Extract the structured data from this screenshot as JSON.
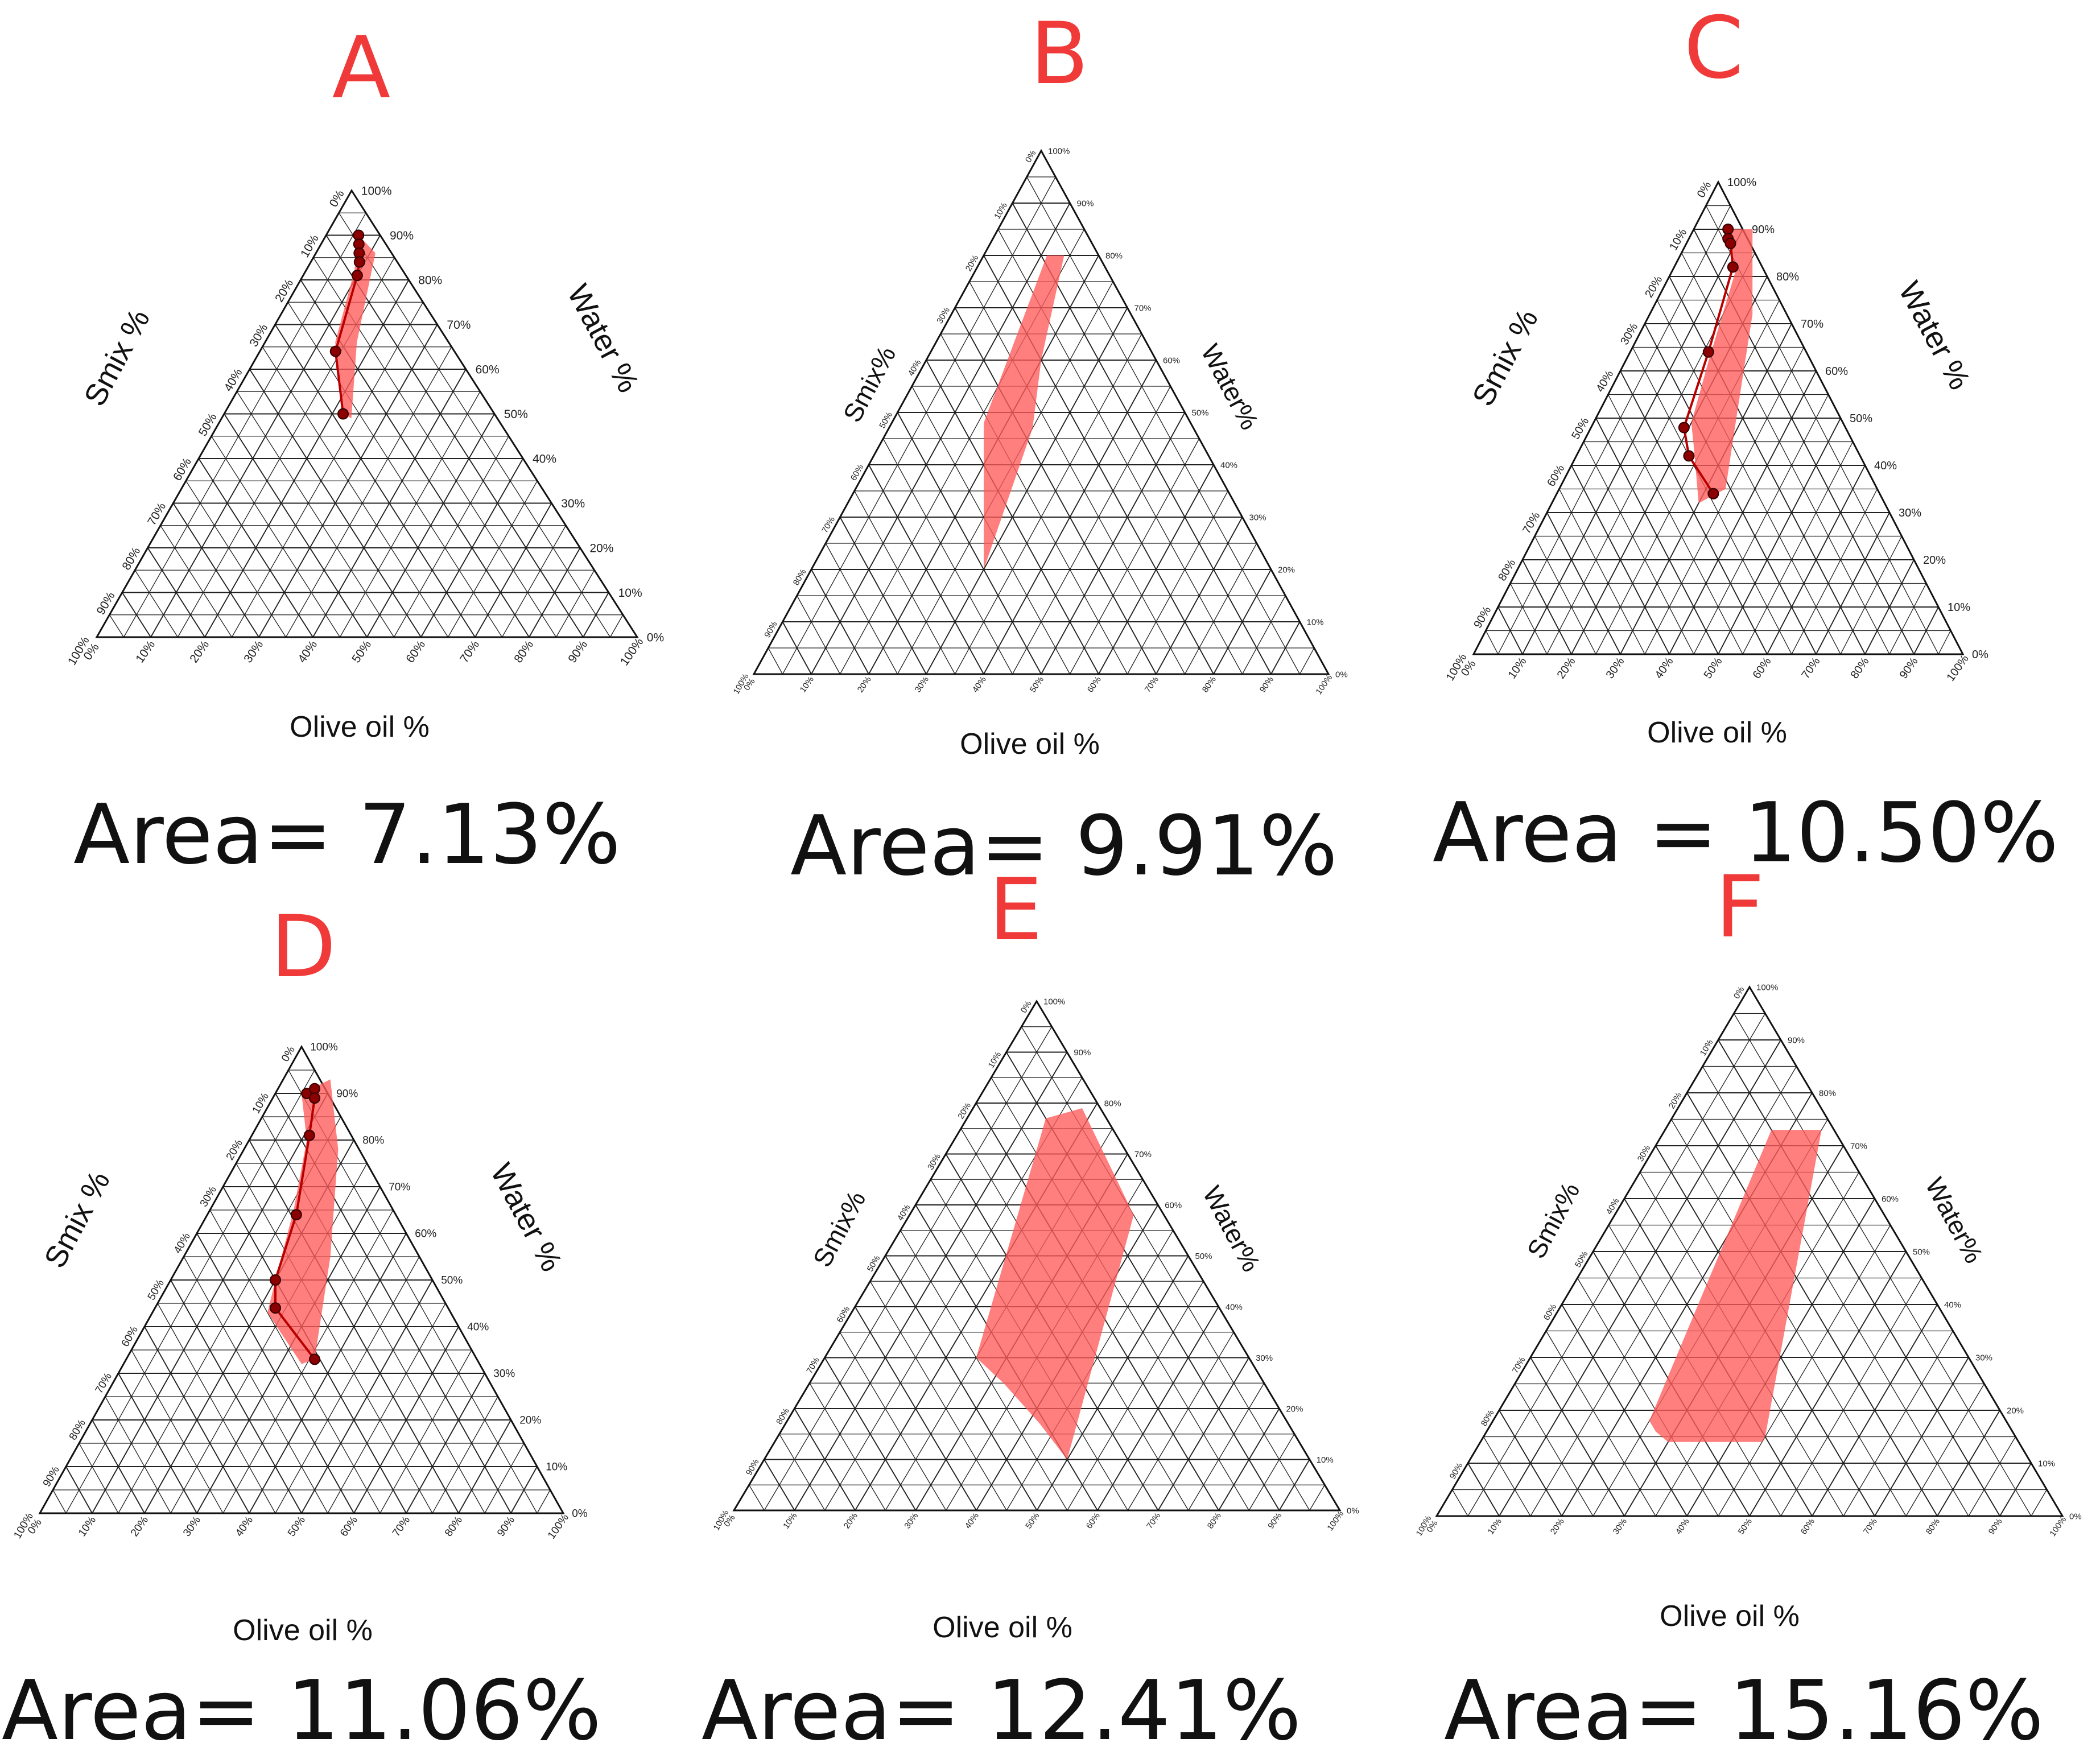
{
  "colors": {
    "accent": "#f03a3a",
    "region": "#ff5a5a",
    "points": "#8b0000",
    "grid": "#222222"
  },
  "ticks": [
    "0%",
    "10%",
    "20%",
    "30%",
    "40%",
    "50%",
    "60%",
    "70%",
    "80%",
    "90%",
    "100%"
  ],
  "chart_data": [
    {
      "type": "ternary",
      "id": "A",
      "panel_label": "A",
      "axes": {
        "bottom": "Olive oil %",
        "left": "Smix %",
        "right": "Water %"
      },
      "area_label": "Area= 7.13%",
      "region": [
        [
          0.06,
          0.9,
          0.04
        ],
        [
          0.09,
          0.82,
          0.09
        ],
        [
          0.13,
          0.66,
          0.21
        ],
        [
          0.22,
          0.5,
          0.28
        ],
        [
          0.24,
          0.49,
          0.27
        ],
        [
          0.17,
          0.66,
          0.17
        ],
        [
          0.11,
          0.86,
          0.03
        ]
      ],
      "points": [
        [
          0.06,
          0.9,
          0.04
        ],
        [
          0.07,
          0.88,
          0.05
        ],
        [
          0.08,
          0.86,
          0.06
        ],
        [
          0.09,
          0.84,
          0.07
        ],
        [
          0.1,
          0.81,
          0.09
        ],
        [
          0.14,
          0.64,
          0.22
        ],
        [
          0.22,
          0.5,
          0.28
        ]
      ]
    },
    {
      "type": "ternary",
      "id": "B",
      "panel_label": "B",
      "axes": {
        "bottom": "Olive oil %",
        "left": "Smix%",
        "right": "Water%"
      },
      "area_label": "Area= 9.91%",
      "region": [
        [
          0.11,
          0.8,
          0.09
        ],
        [
          0.16,
          0.48,
          0.36
        ],
        [
          0.21,
          0.38,
          0.41
        ],
        [
          0.3,
          0.2,
          0.5
        ],
        [
          0.25,
          0.47,
          0.28
        ],
        [
          0.2,
          0.6,
          0.2
        ],
        [
          0.14,
          0.8,
          0.06
        ]
      ],
      "points": []
    },
    {
      "type": "ternary",
      "id": "C",
      "panel_label": "C",
      "axes": {
        "bottom": "Olive oil %",
        "left": "Smix %",
        "right": "Water %"
      },
      "area_label": "Area = 10.50%",
      "region": [
        [
          0.07,
          0.9,
          0.03
        ],
        [
          0.13,
          0.81,
          0.06
        ],
        [
          0.17,
          0.62,
          0.21
        ],
        [
          0.2,
          0.49,
          0.31
        ],
        [
          0.23,
          0.44,
          0.33
        ],
        [
          0.3,
          0.32,
          0.38
        ],
        [
          0.34,
          0.35,
          0.31
        ],
        [
          0.28,
          0.52,
          0.2
        ],
        [
          0.21,
          0.72,
          0.07
        ],
        [
          0.12,
          0.9,
          -0.02
        ]
      ],
      "points": [
        [
          0.07,
          0.9,
          0.03
        ],
        [
          0.08,
          0.88,
          0.04
        ],
        [
          0.09,
          0.87,
          0.04
        ],
        [
          0.12,
          0.82,
          0.06
        ],
        [
          0.16,
          0.64,
          0.2
        ],
        [
          0.19,
          0.48,
          0.33
        ],
        [
          0.23,
          0.42,
          0.35
        ],
        [
          0.32,
          0.34,
          0.34
        ]
      ]
    },
    {
      "type": "ternary",
      "id": "D",
      "panel_label": "D",
      "axes": {
        "bottom": "Olive oil %",
        "left": "Smix %",
        "right": "Water %"
      },
      "area_label": "Area= 11.06%",
      "region": [
        [
          0.05,
          0.9,
          0.05
        ],
        [
          0.11,
          0.8,
          0.09
        ],
        [
          0.16,
          0.65,
          0.19
        ],
        [
          0.2,
          0.5,
          0.3
        ],
        [
          0.22,
          0.43,
          0.35
        ],
        [
          0.34,
          0.32,
          0.34
        ],
        [
          0.36,
          0.33,
          0.31
        ],
        [
          0.28,
          0.55,
          0.17
        ],
        [
          0.18,
          0.78,
          0.04
        ],
        [
          0.09,
          0.93,
          -0.02
        ]
      ],
      "points": [
        [
          0.06,
          0.9,
          0.04
        ],
        [
          0.07,
          0.91,
          0.02
        ],
        [
          0.08,
          0.89,
          0.03
        ],
        [
          0.11,
          0.81,
          0.08
        ],
        [
          0.17,
          0.64,
          0.19
        ],
        [
          0.2,
          0.5,
          0.3
        ],
        [
          0.23,
          0.44,
          0.33
        ],
        [
          0.36,
          0.33,
          0.31
        ]
      ]
    },
    {
      "type": "ternary",
      "id": "E",
      "panel_label": "E",
      "axes": {
        "bottom": "Olive oil %",
        "left": "Smix%",
        "right": "Water%"
      },
      "area_label": "Area= 12.41%",
      "region": [
        [
          0.13,
          0.77,
          0.1
        ],
        [
          0.25,
          0.3,
          0.45
        ],
        [
          0.32,
          0.25,
          0.43
        ],
        [
          0.42,
          0.17,
          0.41
        ],
        [
          0.5,
          0.1,
          0.4
        ],
        [
          0.37,
          0.58,
          0.05
        ],
        [
          0.18,
          0.79,
          0.03
        ]
      ],
      "points": []
    },
    {
      "type": "ternary",
      "id": "F",
      "panel_label": "F",
      "axes": {
        "bottom": "Olive oil %",
        "left": "Smix%",
        "right": "Water%"
      },
      "area_label": "Area= 15.16%",
      "region": [
        [
          0.17,
          0.73,
          0.1
        ],
        [
          0.25,
          0.18,
          0.57
        ],
        [
          0.27,
          0.16,
          0.57
        ],
        [
          0.3,
          0.14,
          0.56
        ],
        [
          0.45,
          0.14,
          0.41
        ],
        [
          0.45,
          0.15,
          0.4
        ],
        [
          0.25,
          0.73,
          0.02
        ]
      ],
      "points": []
    }
  ]
}
